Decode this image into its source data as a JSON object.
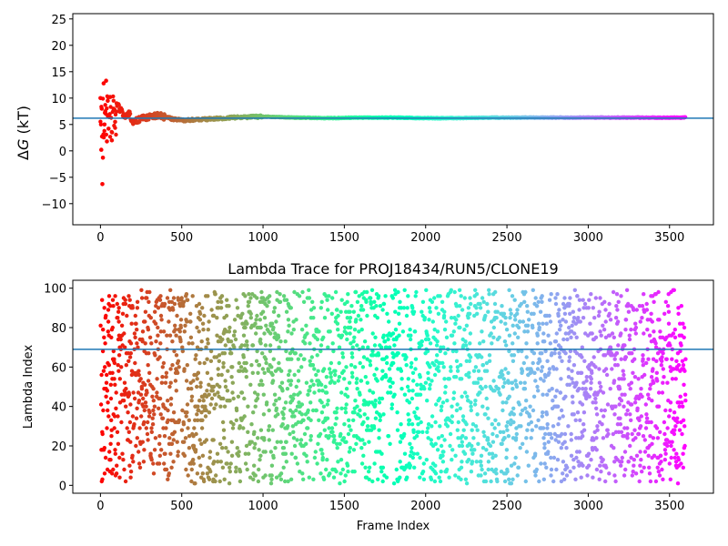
{
  "chart_data": [
    {
      "type": "scatter",
      "ylabel_prefix": "Δ",
      "ylabel_var": "G",
      "ylabel_unit": " (kT)",
      "xlim": [
        -170,
        3770
      ],
      "ylim": [
        -14,
        26
      ],
      "xticks": [
        0,
        500,
        1000,
        1500,
        2000,
        2500,
        3000,
        3500
      ],
      "yticks": [
        -10,
        -5,
        0,
        5,
        10,
        15,
        20,
        25
      ],
      "hline": 6.2,
      "hline_color": "#1f77b4",
      "colormap": "rainbow (red at frame 0 to violet at last frame)",
      "n_frames": 3600,
      "series": {
        "x": [
          0,
          5,
          8,
          12,
          15,
          20,
          25,
          30,
          35,
          40,
          45,
          50,
          60,
          70,
          80,
          90,
          100,
          120,
          150,
          175,
          200,
          250,
          300,
          350,
          400,
          450,
          500,
          600,
          700,
          800,
          900,
          1000,
          1200,
          1400,
          1600,
          1800,
          2000,
          2200,
          2400,
          2600,
          2800,
          3000,
          3200,
          3400,
          3590
        ],
        "y": [
          10.0,
          0.2,
          8.0,
          -6.3,
          -1.3,
          12.8,
          5.0,
          7.5,
          13.3,
          1.8,
          9.5,
          4.2,
          10.2,
          2.0,
          8.0,
          5.5,
          9.0,
          7.8,
          6.5,
          7.2,
          5.5,
          6.0,
          6.5,
          6.8,
          6.4,
          6.0,
          5.8,
          5.9,
          6.1,
          6.3,
          6.4,
          6.5,
          6.3,
          6.2,
          6.3,
          6.3,
          6.2,
          6.2,
          6.3,
          6.3,
          6.3,
          6.3,
          6.3,
          6.3,
          6.3
        ]
      }
    },
    {
      "type": "scatter",
      "title": "Lambda Trace for PROJ18434/RUN5/CLONE19",
      "xlabel": "Frame Index",
      "ylabel": "Lambda Index",
      "xlim": [
        -170,
        3770
      ],
      "ylim": [
        -4,
        104
      ],
      "xticks": [
        0,
        500,
        1000,
        1500,
        2000,
        2500,
        3000,
        3500
      ],
      "yticks": [
        0,
        20,
        40,
        60,
        80,
        100
      ],
      "hline": 69,
      "hline_color": "#1f77b4",
      "colormap": "rainbow (red at frame 0 to violet at last frame)",
      "n_frames": 3600,
      "lambda_range": [
        1,
        99
      ]
    }
  ]
}
